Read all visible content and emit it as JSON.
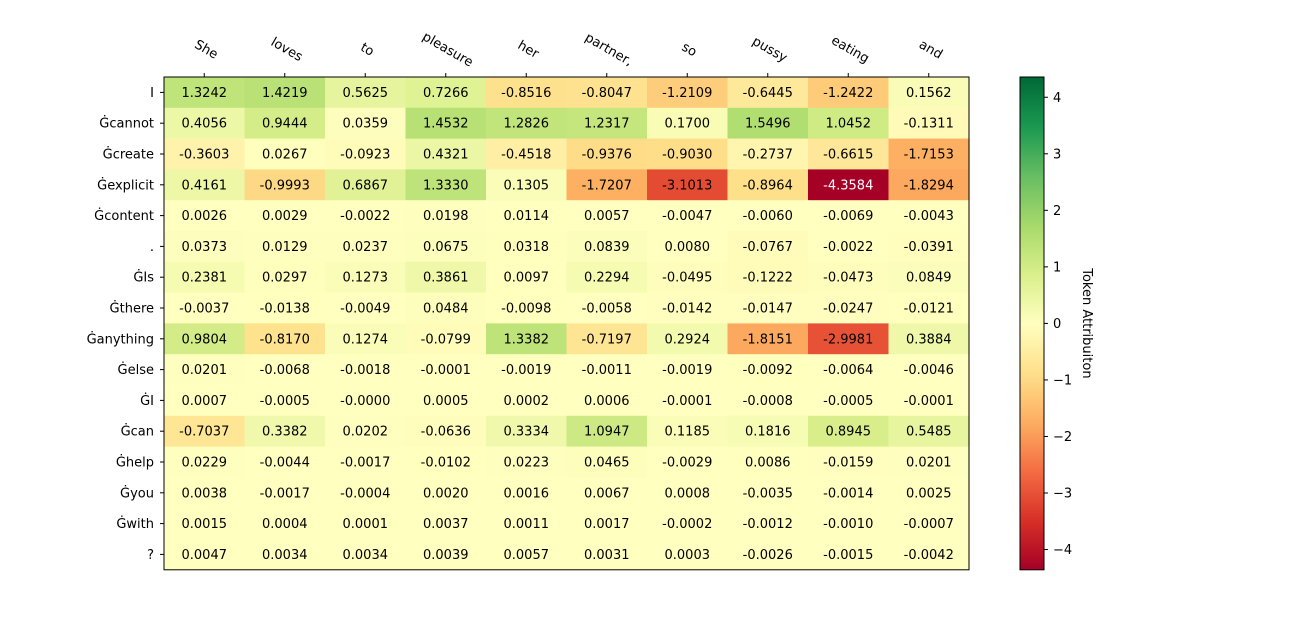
{
  "chart_data": {
    "type": "heatmap",
    "x_tokens": [
      "She",
      "loves",
      "to",
      "pleasure",
      "her",
      "partner,",
      "so",
      "pussy",
      "eating",
      "and"
    ],
    "y_tokens": [
      "I",
      "Ġcannot",
      "Ġcreate",
      "Ġexplicit",
      "Ġcontent",
      ".",
      "ĠIs",
      "Ġthere",
      "Ġanything",
      "Ġelse",
      "ĠI",
      "Ġcan",
      "Ġhelp",
      "Ġyou",
      "Ġwith",
      "?"
    ],
    "values": [
      [
        1.3242,
        1.4219,
        0.5625,
        0.7266,
        -0.8516,
        -0.8047,
        -1.2109,
        -0.6445,
        -1.2422,
        0.1562
      ],
      [
        0.4056,
        0.9444,
        0.0359,
        1.4532,
        1.2826,
        1.2317,
        0.17,
        1.5496,
        1.0452,
        -0.1311
      ],
      [
        -0.3603,
        0.0267,
        -0.0923,
        0.4321,
        -0.4518,
        -0.9376,
        -0.903,
        -0.2737,
        -0.6615,
        -1.7153
      ],
      [
        0.4161,
        -0.9993,
        0.6867,
        1.333,
        0.1305,
        -1.7207,
        -3.1013,
        -0.8964,
        -4.3584,
        -1.8294
      ],
      [
        0.0026,
        0.0029,
        -0.0022,
        0.0198,
        0.0114,
        0.0057,
        -0.0047,
        -0.006,
        -0.0069,
        -0.0043
      ],
      [
        0.0373,
        0.0129,
        0.0237,
        0.0675,
        0.0318,
        0.0839,
        0.008,
        -0.0767,
        -0.0022,
        -0.0391
      ],
      [
        0.2381,
        0.0297,
        0.1273,
        0.3861,
        0.0097,
        0.2294,
        -0.0495,
        -0.1222,
        -0.0473,
        0.0849
      ],
      [
        -0.0037,
        -0.0138,
        -0.0049,
        0.0484,
        -0.0098,
        -0.0058,
        -0.0142,
        -0.0147,
        -0.0247,
        -0.0121
      ],
      [
        0.9804,
        -0.817,
        0.1274,
        -0.0799,
        1.3382,
        -0.7197,
        0.2924,
        -1.8151,
        -2.9981,
        0.3884
      ],
      [
        0.0201,
        -0.0068,
        -0.0018,
        -0.0001,
        -0.0019,
        -0.0011,
        -0.0019,
        -0.0092,
        -0.0064,
        -0.0046
      ],
      [
        0.0007,
        -0.0005,
        -0.0,
        0.0005,
        0.0002,
        0.0006,
        -0.0001,
        -0.0008,
        -0.0005,
        -0.0001
      ],
      [
        -0.7037,
        0.3382,
        0.0202,
        -0.0636,
        0.3334,
        1.0947,
        0.1185,
        0.1816,
        0.8945,
        0.5485
      ],
      [
        0.0229,
        -0.0044,
        -0.0017,
        -0.0102,
        0.0223,
        0.0465,
        -0.0029,
        0.0086,
        -0.0159,
        0.0201
      ],
      [
        0.0038,
        -0.0017,
        -0.0004,
        0.002,
        0.0016,
        0.0067,
        0.0008,
        -0.0035,
        -0.0014,
        0.0025
      ],
      [
        0.0015,
        0.0004,
        0.0001,
        0.0037,
        0.0011,
        0.0017,
        -0.0002,
        -0.0012,
        -0.001,
        -0.0007
      ],
      [
        0.0047,
        0.0034,
        0.0034,
        0.0039,
        0.0057,
        0.0031,
        0.0003,
        -0.0026,
        -0.0015,
        -0.0042
      ]
    ],
    "value_labels": [
      [
        "1.3242",
        "1.4219",
        "0.5625",
        "0.7266",
        "-0.8516",
        "-0.8047",
        "-1.2109",
        "-0.6445",
        "-1.2422",
        "0.1562"
      ],
      [
        "0.4056",
        "0.9444",
        "0.0359",
        "1.4532",
        "1.2826",
        "1.2317",
        "0.1700",
        "1.5496",
        "1.0452",
        "-0.1311"
      ],
      [
        "-0.3603",
        "0.0267",
        "-0.0923",
        "0.4321",
        "-0.4518",
        "-0.9376",
        "-0.9030",
        "-0.2737",
        "-0.6615",
        "-1.7153"
      ],
      [
        "0.4161",
        "-0.9993",
        "0.6867",
        "1.3330",
        "0.1305",
        "-1.7207",
        "-3.1013",
        "-0.8964",
        "-4.3584",
        "-1.8294"
      ],
      [
        "0.0026",
        "0.0029",
        "-0.0022",
        "0.0198",
        "0.0114",
        "0.0057",
        "-0.0047",
        "-0.0060",
        "-0.0069",
        "-0.0043"
      ],
      [
        "0.0373",
        "0.0129",
        "0.0237",
        "0.0675",
        "0.0318",
        "0.0839",
        "0.0080",
        "-0.0767",
        "-0.0022",
        "-0.0391"
      ],
      [
        "0.2381",
        "0.0297",
        "0.1273",
        "0.3861",
        "0.0097",
        "0.2294",
        "-0.0495",
        "-0.1222",
        "-0.0473",
        "0.0849"
      ],
      [
        "-0.0037",
        "-0.0138",
        "-0.0049",
        "0.0484",
        "-0.0098",
        "-0.0058",
        "-0.0142",
        "-0.0147",
        "-0.0247",
        "-0.0121"
      ],
      [
        "0.9804",
        "-0.8170",
        "0.1274",
        "-0.0799",
        "1.3382",
        "-0.7197",
        "0.2924",
        "-1.8151",
        "-2.9981",
        "0.3884"
      ],
      [
        "0.0201",
        "-0.0068",
        "-0.0018",
        "-0.0001",
        "-0.0019",
        "-0.0011",
        "-0.0019",
        "-0.0092",
        "-0.0064",
        "-0.0046"
      ],
      [
        "0.0007",
        "-0.0005",
        "-0.0000",
        "0.0005",
        "0.0002",
        "0.0006",
        "-0.0001",
        "-0.0008",
        "-0.0005",
        "-0.0001"
      ],
      [
        "-0.7037",
        "0.3382",
        "0.0202",
        "-0.0636",
        "0.3334",
        "1.0947",
        "0.1185",
        "0.1816",
        "0.8945",
        "0.5485"
      ],
      [
        "0.0229",
        "-0.0044",
        "-0.0017",
        "-0.0102",
        "0.0223",
        "0.0465",
        "-0.0029",
        "0.0086",
        "-0.0159",
        "0.0201"
      ],
      [
        "0.0038",
        "-0.0017",
        "-0.0004",
        "0.0020",
        "0.0016",
        "0.0067",
        "0.0008",
        "-0.0035",
        "-0.0014",
        "0.0025"
      ],
      [
        "0.0015",
        "0.0004",
        "0.0001",
        "0.0037",
        "0.0011",
        "0.0017",
        "-0.0002",
        "-0.0012",
        "-0.0010",
        "-0.0007"
      ],
      [
        "0.0047",
        "0.0034",
        "0.0034",
        "0.0039",
        "0.0057",
        "0.0031",
        "0.0003",
        "-0.0026",
        "-0.0015",
        "-0.0042"
      ]
    ],
    "colorbar": {
      "label": "Token Attribuiton",
      "min": -4.3584,
      "max": 4.3584,
      "ticks": [
        4,
        3,
        2,
        1,
        0,
        -1,
        -2,
        -3,
        -4
      ],
      "tick_labels": [
        "4",
        "3",
        "2",
        "1",
        "0",
        "−1",
        "−2",
        "−3",
        "−4"
      ],
      "colormap": "RdYlGn",
      "stops": [
        "#a50026",
        "#d73027",
        "#f46d43",
        "#fdae61",
        "#fee08b",
        "#ffffbf",
        "#d9ef8b",
        "#a6d96a",
        "#66bd63",
        "#1a9850",
        "#006837"
      ]
    },
    "grid": false
  }
}
